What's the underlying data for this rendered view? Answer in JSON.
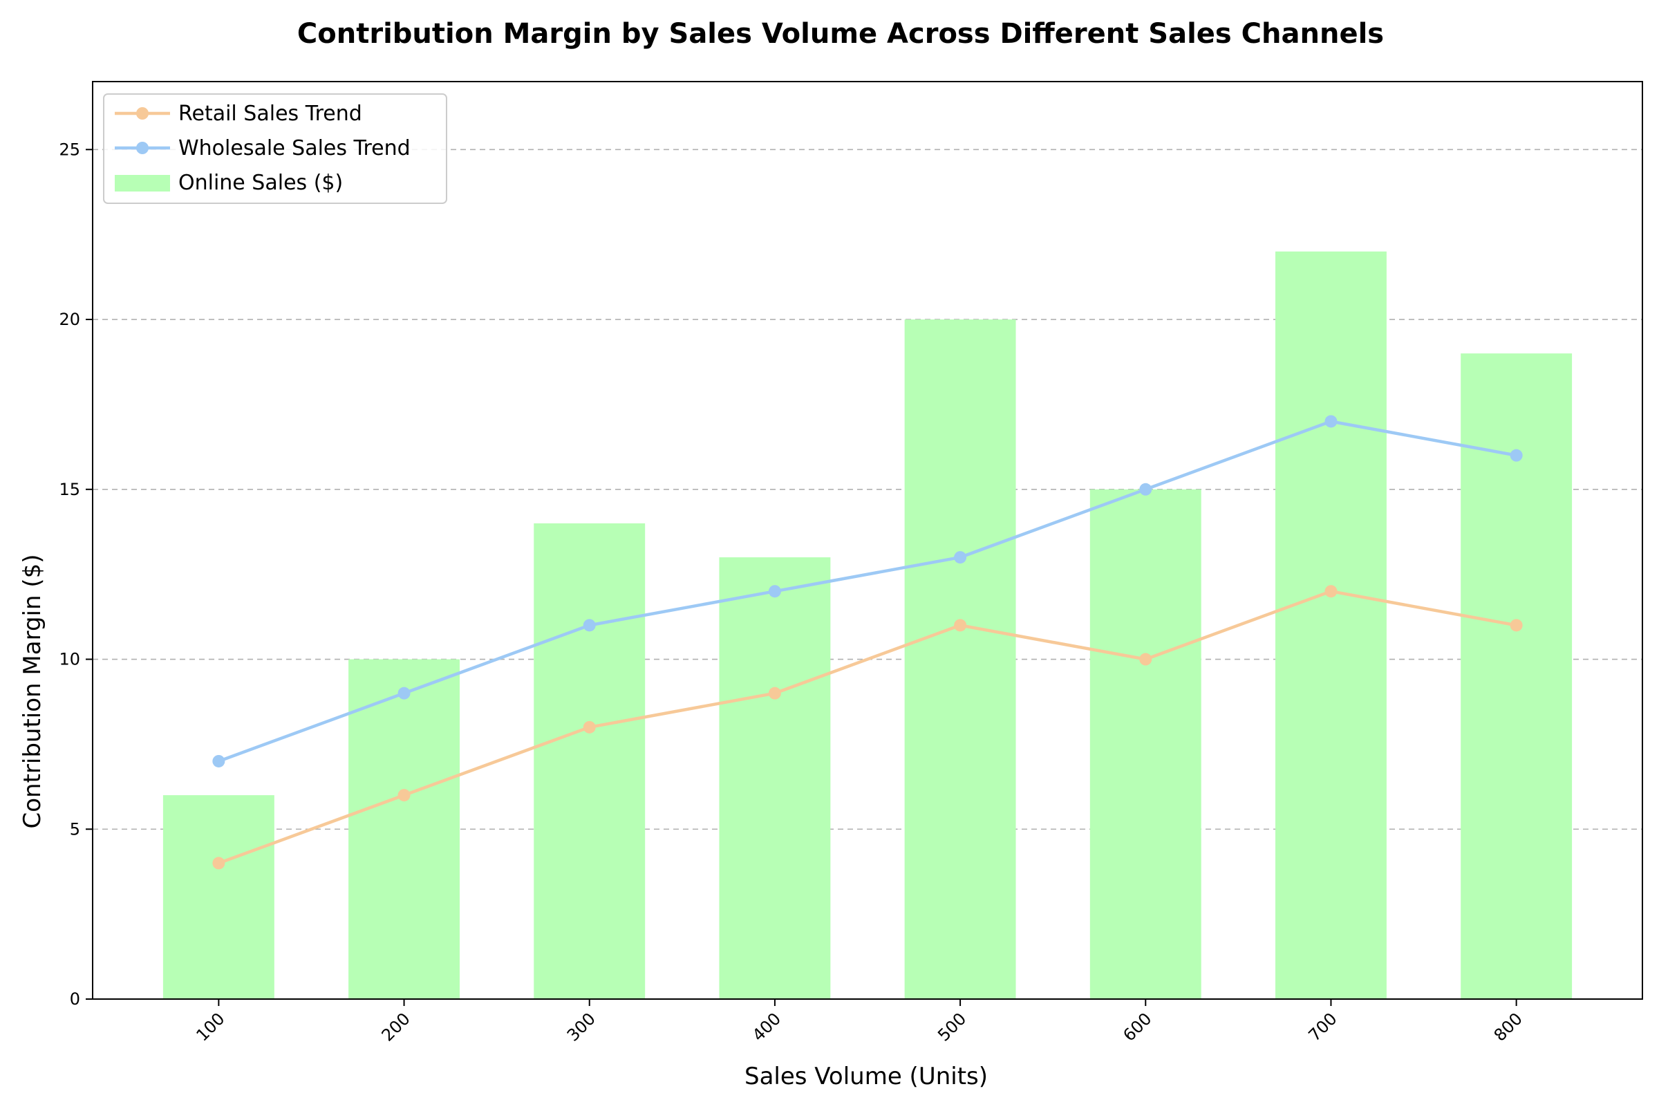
{
  "chart_data": {
    "type": "bar",
    "title": "Contribution Margin by Sales Volume Across Different Sales Channels",
    "xlabel": "Sales Volume (Units)",
    "ylabel": "Contribution Margin ($)",
    "categories": [
      "100",
      "200",
      "300",
      "400",
      "500",
      "600",
      "700",
      "800"
    ],
    "ylim": [
      0,
      27
    ],
    "yticks": [
      0,
      5,
      10,
      15,
      20,
      25
    ],
    "grid": "horizontal dashed",
    "legend_position": "top-left",
    "series": [
      {
        "name": "Online Sales ($)",
        "type": "bar",
        "color": "#b7ffb5",
        "values": [
          6,
          10,
          14,
          13,
          20,
          15,
          22,
          19
        ]
      },
      {
        "name": "Retail Sales Trend",
        "type": "line",
        "color": "#f7c998",
        "values": [
          4,
          6,
          8,
          9,
          11,
          10,
          12,
          11
        ]
      },
      {
        "name": "Wholesale Sales Trend",
        "type": "line",
        "color": "#9dc9f5",
        "values": [
          7,
          9,
          11,
          12,
          13,
          15,
          17,
          16
        ]
      }
    ]
  }
}
